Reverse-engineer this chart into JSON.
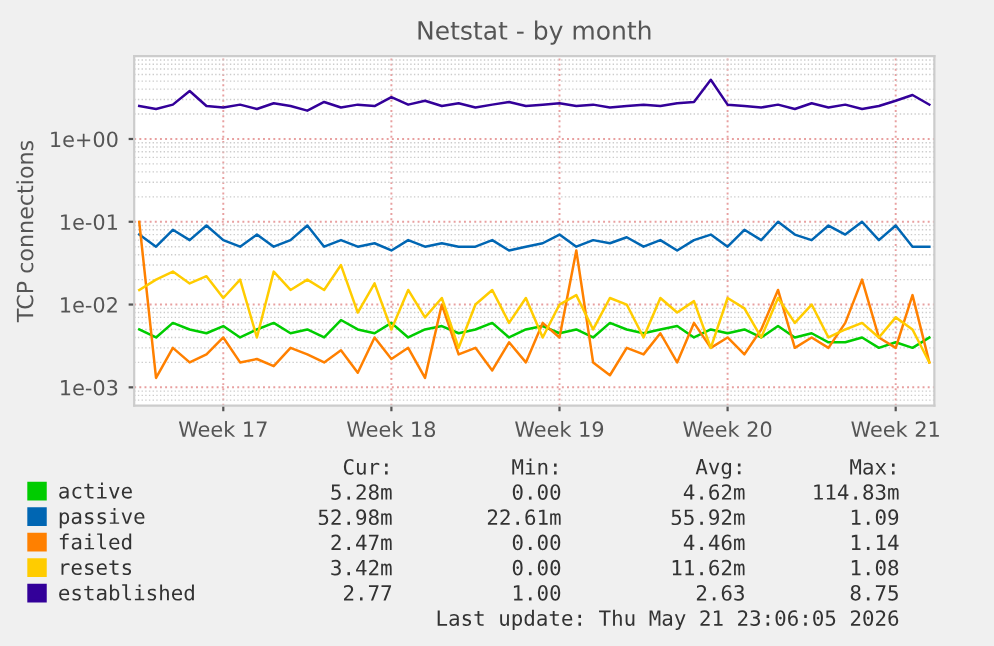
{
  "chart_data": {
    "type": "line",
    "title": "Netstat - by month",
    "ylabel": "TCP connections",
    "log": "y",
    "grid": true,
    "legend": "bottom",
    "marker": "none",
    "line_style": "solid",
    "categories": [
      null,
      null,
      null,
      null,
      null,
      "Week 17",
      null,
      null,
      null,
      null,
      null,
      null,
      null,
      null,
      null,
      "Week 18",
      null,
      null,
      null,
      null,
      null,
      null,
      null,
      null,
      null,
      "Week 19",
      null,
      null,
      null,
      null,
      null,
      null,
      null,
      null,
      null,
      "Week 20",
      null,
      null,
      null,
      null,
      null,
      null,
      null,
      null,
      null,
      "Week 21",
      null,
      null
    ],
    "ylim": [
      0.0006,
      10
    ],
    "yticks": [
      {
        "value": 0.001,
        "label": "1e-03"
      },
      {
        "value": 0.01,
        "label": "1e-02"
      },
      {
        "value": 0.1,
        "label": "1e-01"
      },
      {
        "value": 1,
        "label": "1e+00"
      }
    ],
    "series": [
      {
        "name": "active",
        "color": "#00cc00",
        "values": [
          0.005,
          0.004,
          0.006,
          0.005,
          0.0045,
          0.0055,
          0.004,
          0.005,
          0.006,
          0.0045,
          0.005,
          0.004,
          0.0065,
          0.005,
          0.0045,
          0.006,
          0.004,
          0.005,
          0.0055,
          0.0045,
          0.005,
          0.006,
          0.004,
          0.005,
          0.0055,
          0.0045,
          0.005,
          0.004,
          0.006,
          0.005,
          0.0045,
          0.005,
          0.0055,
          0.004,
          0.005,
          0.0045,
          0.005,
          0.004,
          0.0055,
          0.004,
          0.0045,
          0.0035,
          0.0035,
          0.004,
          0.003,
          0.0035,
          0.003,
          0.004
        ]
      },
      {
        "name": "passive",
        "color": "#0066b3",
        "values": [
          0.07,
          0.05,
          0.08,
          0.06,
          0.09,
          0.06,
          0.05,
          0.07,
          0.05,
          0.06,
          0.09,
          0.05,
          0.06,
          0.05,
          0.055,
          0.045,
          0.06,
          0.05,
          0.055,
          0.05,
          0.05,
          0.06,
          0.045,
          0.05,
          0.055,
          0.07,
          0.05,
          0.06,
          0.055,
          0.065,
          0.05,
          0.06,
          0.045,
          0.06,
          0.07,
          0.05,
          0.08,
          0.06,
          0.1,
          0.07,
          0.06,
          0.09,
          0.07,
          0.1,
          0.06,
          0.09,
          0.05,
          0.05
        ]
      },
      {
        "name": "failed",
        "color": "#ff8000",
        "values": [
          0.1,
          0.0013,
          0.003,
          0.002,
          0.0025,
          0.004,
          0.002,
          0.0022,
          0.0018,
          0.003,
          0.0025,
          0.002,
          0.0028,
          0.0015,
          0.004,
          0.0022,
          0.003,
          0.0013,
          0.01,
          0.0025,
          0.003,
          0.0016,
          0.0035,
          0.002,
          0.006,
          0.004,
          0.045,
          0.002,
          0.0014,
          0.003,
          0.0025,
          0.0045,
          0.002,
          0.006,
          0.003,
          0.004,
          0.0025,
          0.005,
          0.015,
          0.003,
          0.004,
          0.003,
          0.006,
          0.02,
          0.004,
          0.003,
          0.013,
          0.002
        ]
      },
      {
        "name": "resets",
        "color": "#ffcc00",
        "values": [
          0.015,
          0.02,
          0.025,
          0.018,
          0.022,
          0.012,
          0.02,
          0.004,
          0.025,
          0.015,
          0.02,
          0.015,
          0.03,
          0.008,
          0.018,
          0.005,
          0.015,
          0.007,
          0.012,
          0.003,
          0.01,
          0.015,
          0.006,
          0.012,
          0.004,
          0.01,
          0.013,
          0.005,
          0.012,
          0.01,
          0.004,
          0.012,
          0.008,
          0.011,
          0.003,
          0.012,
          0.009,
          0.004,
          0.012,
          0.006,
          0.01,
          0.004,
          0.005,
          0.006,
          0.004,
          0.007,
          0.005,
          0.002
        ]
      },
      {
        "name": "established",
        "color": "#330099",
        "values": [
          2.5,
          2.3,
          2.6,
          3.8,
          2.5,
          2.4,
          2.6,
          2.3,
          2.7,
          2.5,
          2.2,
          2.8,
          2.4,
          2.6,
          2.5,
          3.2,
          2.6,
          2.9,
          2.5,
          2.7,
          2.4,
          2.6,
          2.8,
          2.5,
          2.6,
          2.7,
          2.5,
          2.6,
          2.4,
          2.5,
          2.6,
          2.5,
          2.7,
          2.8,
          5.2,
          2.6,
          2.5,
          2.4,
          2.6,
          2.3,
          2.7,
          2.4,
          2.6,
          2.3,
          2.5,
          2.9,
          3.4,
          2.6
        ]
      }
    ],
    "annotations": [
      "Cur:",
      "Min:",
      "Avg:",
      "Max:",
      "5.28m",
      "0.00",
      "4.62m",
      "114.83m",
      "52.98m",
      "22.61m",
      "55.92m",
      "1.09",
      "2.47m",
      "0.00",
      "4.46m",
      "1.14",
      "3.42m",
      "0.00",
      "11.62m",
      "1.08",
      "2.77",
      "1.00",
      "2.63",
      "8.75",
      "Last update: Thu May 21 23:06:05 2026"
    ]
  }
}
